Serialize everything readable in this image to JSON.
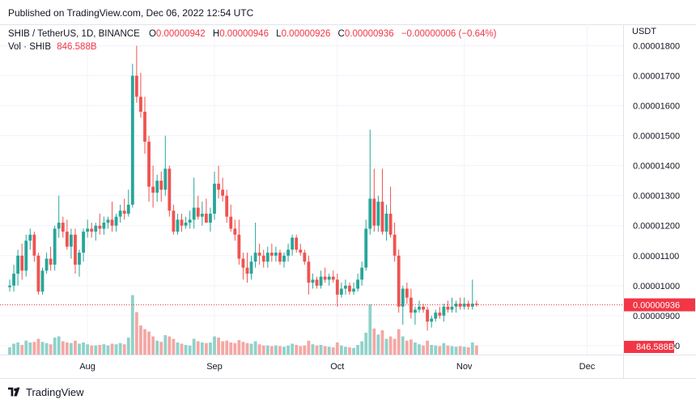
{
  "header": {
    "published": "Published on TradingView.com, Dec 06, 2022 12:54 UTC"
  },
  "legend": {
    "symbol": "SHIB / TetherUS, 1D, BINANCE",
    "o_label": "O",
    "o_value": "0.00000942",
    "h_label": "H",
    "h_value": "0.00000946",
    "l_label": "L",
    "l_value": "0.00000926",
    "c_label": "C",
    "c_value": "0.00000936",
    "change": "−0.00000006 (−0.64%)",
    "vol_label": "Vol · SHIB",
    "vol_value": "846.588B"
  },
  "axis": {
    "currency": "USDT",
    "price_badge": "0.00000936",
    "volume_badge": "846.588B"
  },
  "footer": {
    "brand": "TradingView"
  },
  "colors": {
    "up": "#26a69a",
    "down": "#ef5350",
    "up_vol": "#8fd2c9",
    "down_vol": "#f5a7a4",
    "badge": "#f23645"
  },
  "chart_data": {
    "type": "candlestick",
    "title": "SHIB / TetherUS, 1D, BINANCE",
    "ylabel": "USDT",
    "ylim": [
      7.7e-06,
      1.85e-05
    ],
    "y_ticks": [
      8e-06,
      9e-06,
      1e-05,
      1.1e-05,
      1.2e-05,
      1.3e-05,
      1.4e-05,
      1.5e-05,
      1.6e-05,
      1.7e-05,
      1.8e-05
    ],
    "y_tick_labels": [
      "0.00000800",
      "0.00000900",
      "0.00001000",
      "0.00001100",
      "0.00001200",
      "0.00001300",
      "0.00001400",
      "0.00001500",
      "0.00001600",
      "0.00001700",
      "0.00001800"
    ],
    "x_tick_labels": [
      {
        "label": "Aug",
        "index": 19
      },
      {
        "label": "Sep",
        "index": 50
      },
      {
        "label": "Oct",
        "index": 80
      },
      {
        "label": "Nov",
        "index": 111
      },
      {
        "label": "Dec",
        "index": 141
      }
    ],
    "last_price": 9.36e-06,
    "candles": [
      [
        9.95e-06,
        1.02e-05,
        9.8e-06,
        1e-05,
        120
      ],
      [
        1e-05,
        1.07e-05,
        9.8e-06,
        1.04e-05,
        180
      ],
      [
        1.04e-05,
        1.12e-05,
        1e-05,
        1.1e-05,
        200
      ],
      [
        1.1e-05,
        1.14e-05,
        1.02e-05,
        1.05e-05,
        160
      ],
      [
        1.05e-05,
        1.17e-05,
        1.03e-05,
        1.15e-05,
        230
      ],
      [
        1.15e-05,
        1.19e-05,
        1.12e-05,
        1.17e-05,
        200
      ],
      [
        1.17e-05,
        1.18e-05,
        1.08e-05,
        1.1e-05,
        210
      ],
      [
        1.1e-05,
        1.11e-05,
        9.7e-06,
        9.8e-06,
        260
      ],
      [
        9.8e-06,
        1.06e-05,
        9.7e-06,
        1.05e-05,
        210
      ],
      [
        1.05e-05,
        1.11e-05,
        1.04e-05,
        1.09e-05,
        190
      ],
      [
        1.09e-05,
        1.13e-05,
        1.05e-05,
        1.07e-05,
        170
      ],
      [
        1.07e-05,
        1.2e-05,
        1.05e-05,
        1.19e-05,
        280
      ],
      [
        1.19e-05,
        1.3e-05,
        1.16e-05,
        1.21e-05,
        300
      ],
      [
        1.21e-05,
        1.23e-05,
        1.16e-05,
        1.18e-05,
        220
      ],
      [
        1.18e-05,
        1.22e-05,
        1.12e-05,
        1.13e-05,
        200
      ],
      [
        1.13e-05,
        1.19e-05,
        1.09e-05,
        1.17e-05,
        190
      ],
      [
        1.17e-05,
        1.19e-05,
        1.04e-05,
        1.07e-05,
        230
      ],
      [
        1.07e-05,
        1.12e-05,
        1.03e-05,
        1.11e-05,
        180
      ],
      [
        1.11e-05,
        1.19e-05,
        1.08e-05,
        1.18e-05,
        200
      ],
      [
        1.18e-05,
        1.22e-05,
        1.16e-05,
        1.19e-05,
        170
      ],
      [
        1.19e-05,
        1.21e-05,
        1.16e-05,
        1.18e-05,
        150
      ],
      [
        1.18e-05,
        1.21e-05,
        1.15e-05,
        1.2e-05,
        150
      ],
      [
        1.2e-05,
        1.24e-05,
        1.17e-05,
        1.19e-05,
        160
      ],
      [
        1.19e-05,
        1.23e-05,
        1.17e-05,
        1.21e-05,
        170
      ],
      [
        1.21e-05,
        1.23e-05,
        1.19e-05,
        1.22e-05,
        150
      ],
      [
        1.22e-05,
        1.28e-05,
        1.18e-05,
        1.2e-05,
        180
      ],
      [
        1.2e-05,
        1.24e-05,
        1.18e-05,
        1.23e-05,
        170
      ],
      [
        1.23e-05,
        1.27e-05,
        1.21e-05,
        1.25e-05,
        190
      ],
      [
        1.25e-05,
        1.29e-05,
        1.22e-05,
        1.24e-05,
        170
      ],
      [
        1.24e-05,
        1.32e-05,
        1.23e-05,
        1.27e-05,
        280
      ],
      [
        1.27e-05,
        1.74e-05,
        1.26e-05,
        1.7e-05,
        980
      ],
      [
        1.7e-05,
        1.8e-05,
        1.61e-05,
        1.63e-05,
        700
      ],
      [
        1.63e-05,
        1.71e-05,
        1.56e-05,
        1.58e-05,
        480
      ],
      [
        1.58e-05,
        1.63e-05,
        1.44e-05,
        1.48e-05,
        420
      ],
      [
        1.48e-05,
        1.5e-05,
        1.28e-05,
        1.33e-05,
        380
      ],
      [
        1.33e-05,
        1.4e-05,
        1.26e-05,
        1.31e-05,
        300
      ],
      [
        1.31e-05,
        1.37e-05,
        1.28e-05,
        1.35e-05,
        230
      ],
      [
        1.35e-05,
        1.38e-05,
        1.28e-05,
        1.32e-05,
        210
      ],
      [
        1.32e-05,
        1.5e-05,
        1.3e-05,
        1.39e-05,
        320
      ],
      [
        1.39e-05,
        1.4e-05,
        1.23e-05,
        1.25e-05,
        300
      ],
      [
        1.25e-05,
        1.27e-05,
        1.17e-05,
        1.18e-05,
        260
      ],
      [
        1.18e-05,
        1.24e-05,
        1.17e-05,
        1.22e-05,
        200
      ],
      [
        1.22e-05,
        1.24e-05,
        1.18e-05,
        1.2e-05,
        180
      ],
      [
        1.2e-05,
        1.23e-05,
        1.19e-05,
        1.21e-05,
        160
      ],
      [
        1.21e-05,
        1.25e-05,
        1.19e-05,
        1.22e-05,
        150
      ],
      [
        1.22e-05,
        1.36e-05,
        1.19e-05,
        1.26e-05,
        260
      ],
      [
        1.26e-05,
        1.3e-05,
        1.22e-05,
        1.23e-05,
        220
      ],
      [
        1.23e-05,
        1.28e-05,
        1.2e-05,
        1.24e-05,
        200
      ],
      [
        1.24e-05,
        1.29e-05,
        1.21e-05,
        1.21e-05,
        190
      ],
      [
        1.21e-05,
        1.26e-05,
        1.18e-05,
        1.24e-05,
        200
      ],
      [
        1.24e-05,
        1.38e-05,
        1.22e-05,
        1.34e-05,
        300
      ],
      [
        1.34e-05,
        1.4e-05,
        1.29e-05,
        1.32e-05,
        280
      ],
      [
        1.32e-05,
        1.36e-05,
        1.28e-05,
        1.3e-05,
        220
      ],
      [
        1.3e-05,
        1.32e-05,
        1.21e-05,
        1.23e-05,
        230
      ],
      [
        1.23e-05,
        1.27e-05,
        1.18e-05,
        1.19e-05,
        200
      ],
      [
        1.19e-05,
        1.22e-05,
        1.15e-05,
        1.17e-05,
        190
      ],
      [
        1.17e-05,
        1.22e-05,
        1.07e-05,
        1.09e-05,
        240
      ],
      [
        1.09e-05,
        1.11e-05,
        1.02e-05,
        1.06e-05,
        210
      ],
      [
        1.06e-05,
        1.11e-05,
        1.01e-05,
        1.04e-05,
        190
      ],
      [
        1.04e-05,
        1.1e-05,
        1.02e-05,
        1.08e-05,
        180
      ],
      [
        1.08e-05,
        1.21e-05,
        1.06e-05,
        1.11e-05,
        220
      ],
      [
        1.11e-05,
        1.14e-05,
        1.07e-05,
        1.1e-05,
        170
      ],
      [
        1.1e-05,
        1.12e-05,
        1.06e-05,
        1.08e-05,
        150
      ],
      [
        1.08e-05,
        1.13e-05,
        1.06e-05,
        1.11e-05,
        150
      ],
      [
        1.11e-05,
        1.14e-05,
        1.08e-05,
        1.1e-05,
        140
      ],
      [
        1.1e-05,
        1.13e-05,
        1.08e-05,
        1.11e-05,
        150
      ],
      [
        1.11e-05,
        1.12e-05,
        1.07e-05,
        1.08e-05,
        140
      ],
      [
        1.08e-05,
        1.11e-05,
        1.06e-05,
        1.1e-05,
        130
      ],
      [
        1.1e-05,
        1.14e-05,
        1.08e-05,
        1.12e-05,
        150
      ],
      [
        1.12e-05,
        1.17e-05,
        1.1e-05,
        1.16e-05,
        180
      ],
      [
        1.16e-05,
        1.17e-05,
        1.11e-05,
        1.12e-05,
        160
      ],
      [
        1.12e-05,
        1.14e-05,
        1.1e-05,
        1.11e-05,
        140
      ],
      [
        1.11e-05,
        1.12e-05,
        1.07e-05,
        1.08e-05,
        150
      ],
      [
        1.08e-05,
        1.1e-05,
        9.7e-06,
        1.01e-05,
        230
      ],
      [
        1.01e-05,
        1.04e-05,
        9.9e-06,
        1.02e-05,
        170
      ],
      [
        1.02e-05,
        1.03e-05,
        9.9e-06,
        1e-05,
        150
      ],
      [
        1e-05,
        1.05e-05,
        9.9e-06,
        1.03e-05,
        160
      ],
      [
        1.03e-05,
        1.06e-05,
        1.01e-05,
        1.02e-05,
        140
      ],
      [
        1.02e-05,
        1.04e-05,
        1e-05,
        1.03e-05,
        130
      ],
      [
        1.03e-05,
        1.05e-05,
        1.01e-05,
        1.02e-05,
        120
      ],
      [
        1.02e-05,
        1.04e-05,
        9.3e-06,
        9.7e-06,
        200
      ],
      [
        9.7e-06,
        1.01e-05,
        9.6e-06,
        9.9e-06,
        150
      ],
      [
        9.9e-06,
        1.02e-05,
        9.7e-06,
        1e-05,
        130
      ],
      [
        1e-05,
        1.01e-05,
        9.7e-06,
        9.8e-06,
        120
      ],
      [
        9.8e-06,
        1.01e-05,
        9.7e-06,
        9.9e-06,
        110
      ],
      [
        9.9e-06,
        1.04e-05,
        9.8e-06,
        1.02e-05,
        160
      ],
      [
        1.02e-05,
        1.08e-05,
        1e-05,
        1.06e-05,
        220
      ],
      [
        1.06e-05,
        1.22e-05,
        1.05e-05,
        1.19e-05,
        360
      ],
      [
        1.19e-05,
        1.52e-05,
        1.17e-05,
        1.29e-05,
        830
      ],
      [
        1.29e-05,
        1.39e-05,
        1.18e-05,
        1.2e-05,
        430
      ],
      [
        1.2e-05,
        1.3e-05,
        1.18e-05,
        1.28e-05,
        330
      ],
      [
        1.28e-05,
        1.39e-05,
        1.17e-05,
        1.18e-05,
        400
      ],
      [
        1.18e-05,
        1.27e-05,
        1.15e-05,
        1.24e-05,
        260
      ],
      [
        1.24e-05,
        1.33e-05,
        1.16e-05,
        1.17e-05,
        300
      ],
      [
        1.17e-05,
        1.21e-05,
        1.08e-05,
        1.1e-05,
        260
      ],
      [
        1.1e-05,
        1.12e-05,
        9.1e-06,
        9.3e-06,
        420
      ],
      [
        9.3e-06,
        1e-05,
        8.7e-06,
        9.9e-06,
        300
      ],
      [
        9.9e-06,
        1.01e-05,
        9.4e-06,
        9.6e-06,
        230
      ],
      [
        9.6e-06,
        9.9e-06,
        8.9e-06,
        9.1e-06,
        250
      ],
      [
        9.1e-06,
        9.3e-06,
        8.7e-06,
        9.2e-06,
        200
      ],
      [
        9.2e-06,
        9.5e-06,
        9.1e-06,
        9.3e-06,
        170
      ],
      [
        9.3e-06,
        9.4e-06,
        9.1e-06,
        9.2e-06,
        150
      ],
      [
        9.2e-06,
        9.3e-06,
        8.5e-06,
        8.8e-06,
        230
      ],
      [
        8.8e-06,
        9e-06,
        8.6e-06,
        8.9e-06,
        160
      ],
      [
        8.9e-06,
        9.2e-06,
        8.8e-06,
        9.1e-06,
        150
      ],
      [
        9.1e-06,
        9.3e-06,
        8.9e-06,
        9e-06,
        140
      ],
      [
        9e-06,
        9.4e-06,
        8.8e-06,
        9.3e-06,
        190
      ],
      [
        9.3e-06,
        9.5e-06,
        9.1e-06,
        9.2e-06,
        150
      ],
      [
        9.2e-06,
        9.6e-06,
        9.1e-06,
        9.3e-06,
        140
      ],
      [
        9.3e-06,
        9.5e-06,
        9.1e-06,
        9.4e-06,
        130
      ],
      [
        9.4e-06,
        9.6e-06,
        9.2e-06,
        9.3e-06,
        140
      ],
      [
        9.3e-06,
        9.6e-06,
        9.2e-06,
        9.4e-06,
        130
      ],
      [
        9.4e-06,
        9.5e-06,
        9.2e-06,
        9.3e-06,
        120
      ],
      [
        9.3e-06,
        1.02e-05,
        9.2e-06,
        9.4e-06,
        200
      ],
      [
        9.4e-06,
        9.5e-06,
        9.3e-06,
        9.36e-06,
        150
      ]
    ]
  }
}
